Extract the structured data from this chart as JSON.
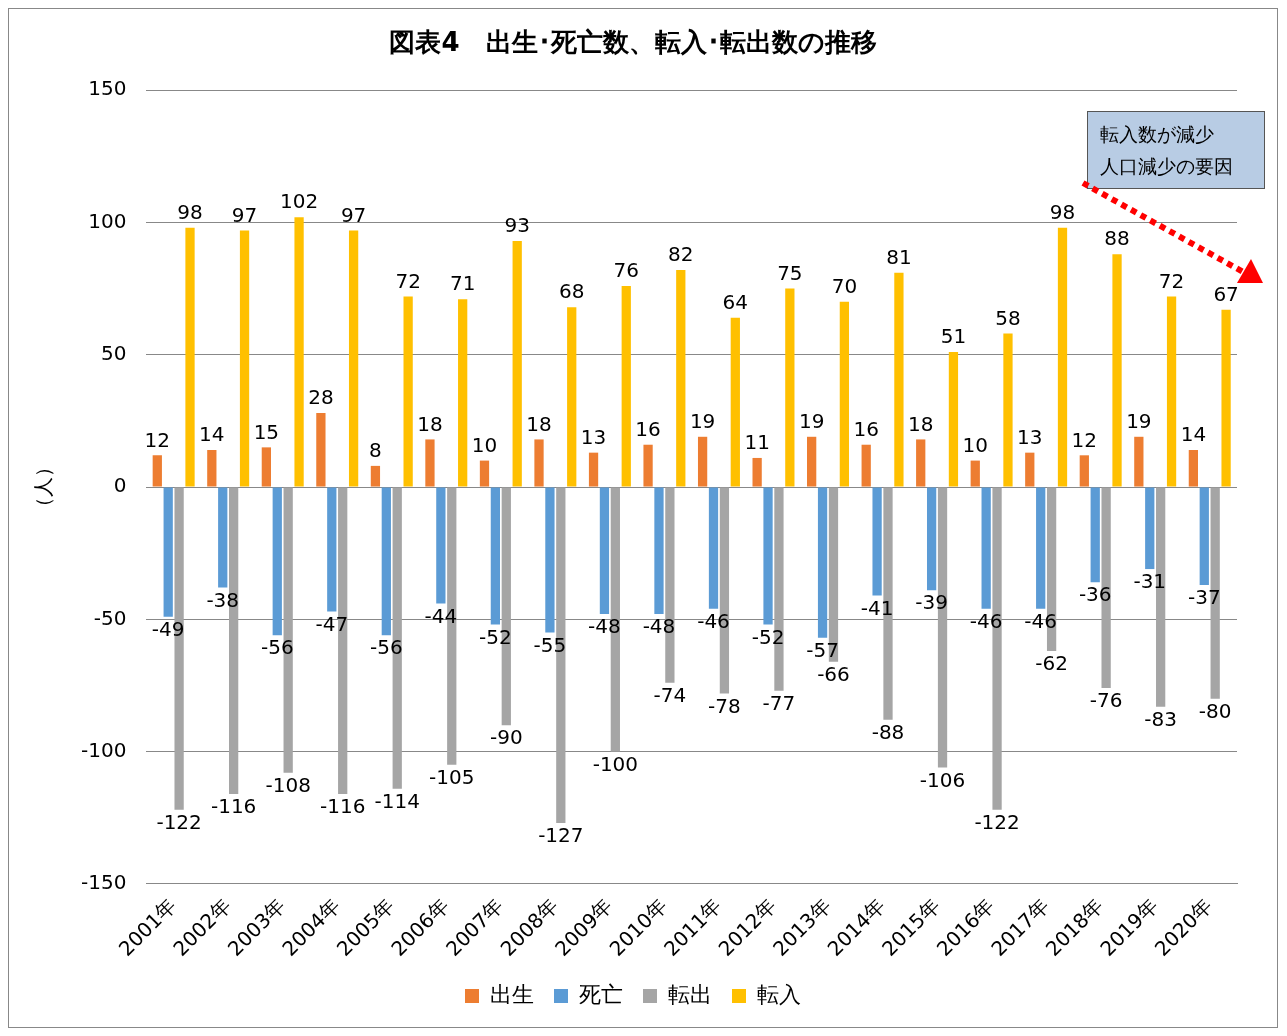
{
  "chart_data": {
    "type": "bar",
    "title": "図表4　出生･死亡数、転入･転出数の推移",
    "ylabel": "（人）",
    "categories": [
      "2001年",
      "2002年",
      "2003年",
      "2004年",
      "2005年",
      "2006年",
      "2007年",
      "2008年",
      "2009年",
      "2010年",
      "2011年",
      "2012年",
      "2013年",
      "2014年",
      "2015年",
      "2016年",
      "2017年",
      "2018年",
      "2019年",
      "2020年"
    ],
    "series": [
      {
        "name": "出生",
        "color": "#ed7d31",
        "values": [
          12,
          14,
          15,
          28,
          8,
          18,
          10,
          18,
          13,
          16,
          19,
          11,
          19,
          16,
          18,
          10,
          13,
          12,
          19,
          14
        ]
      },
      {
        "name": "死亡",
        "color": "#5b9bd5",
        "values": [
          -49,
          -38,
          -56,
          -47,
          -56,
          -44,
          -52,
          -55,
          -48,
          -48,
          -46,
          -52,
          -57,
          -41,
          -39,
          -46,
          -46,
          -36,
          -31,
          -37
        ]
      },
      {
        "name": "転出",
        "color": "#a5a5a5",
        "values": [
          -122,
          -116,
          -108,
          -116,
          -114,
          -105,
          -90,
          -127,
          -100,
          -74,
          -78,
          -77,
          -66,
          -88,
          -106,
          -122,
          -62,
          -76,
          -83,
          -80
        ]
      },
      {
        "name": "転入",
        "color": "#ffc000",
        "values": [
          98,
          97,
          102,
          97,
          72,
          71,
          93,
          68,
          76,
          82,
          64,
          75,
          70,
          81,
          51,
          58,
          98,
          88,
          72,
          67
        ]
      }
    ],
    "ylim": [
      -150,
      150
    ],
    "yticks": [
      -150,
      -100,
      -50,
      0,
      50,
      100,
      150
    ],
    "grid": "y",
    "legend": "bottom",
    "data_labels": true,
    "annotations": [
      "転入数が減少",
      "人口減少の要因"
    ]
  }
}
